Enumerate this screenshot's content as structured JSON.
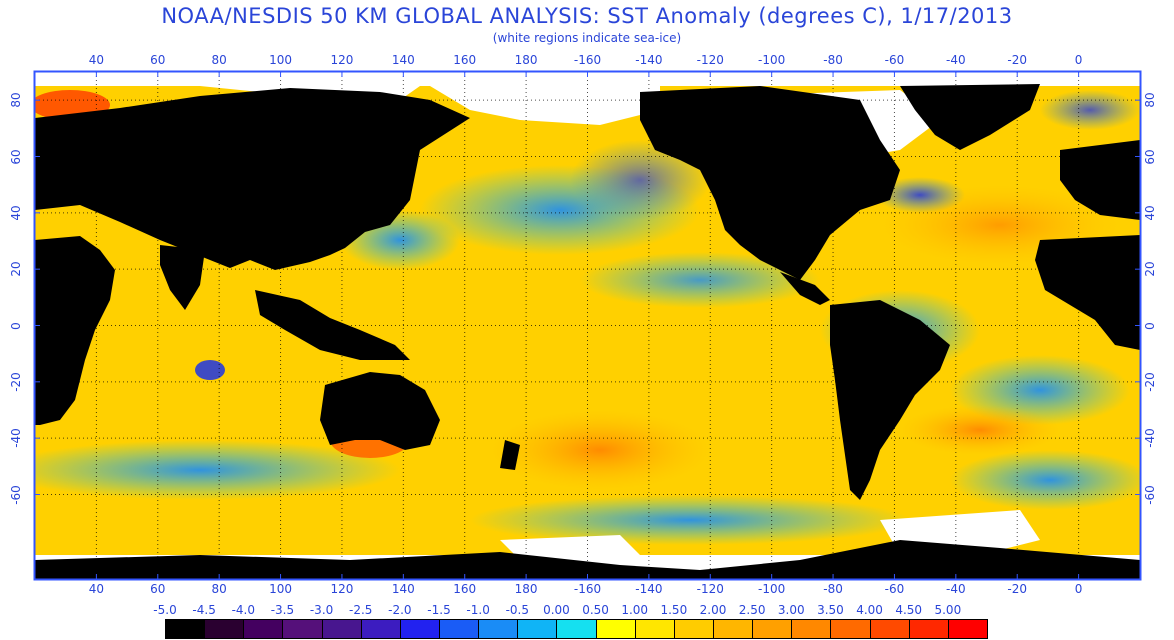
{
  "title": "NOAA/NESDIS 50 KM GLOBAL ANALYSIS: SST Anomaly (degrees C), 1/17/2013",
  "subtitle": "(white regions indicate sea-ice)",
  "map": {
    "projection": "equirectangular",
    "lon_range": [
      20,
      380
    ],
    "lat_range": [
      -90,
      90
    ],
    "lon_ticks": [
      "40",
      "60",
      "80",
      "100",
      "120",
      "140",
      "160",
      "180",
      "-160",
      "-140",
      "-120",
      "-100",
      "-80",
      "-60",
      "-40",
      "-20",
      "0"
    ],
    "lat_ticks": [
      "80",
      "60",
      "40",
      "20",
      "0",
      "-20",
      "-40",
      "-60"
    ],
    "grid": "dotted",
    "colors": {
      "land": "#000000",
      "sea_ice": "#ffffff",
      "frame": "#3355ff"
    }
  },
  "colorbar": {
    "labels": [
      "-5.0",
      "-4.5",
      "-4.0",
      "-3.5",
      "-3.0",
      "-2.5",
      "-2.0",
      "-1.5",
      "-1.0",
      "-0.5",
      "0.00",
      "0.50",
      "1.00",
      "1.50",
      "2.00",
      "2.50",
      "3.00",
      "3.50",
      "4.00",
      "4.50",
      "5.00"
    ],
    "colors": [
      "#000000",
      "#2a0030",
      "#440060",
      "#55107a",
      "#48168f",
      "#3c1cc0",
      "#2222f0",
      "#1a5cf6",
      "#1a8cf6",
      "#10b4f6",
      "#15e0f0",
      "#ffff00",
      "#ffe600",
      "#ffcc00",
      "#ffb600",
      "#ffa000",
      "#ff8800",
      "#ff6a00",
      "#ff4a00",
      "#ff2800",
      "#ff0000"
    ]
  }
}
